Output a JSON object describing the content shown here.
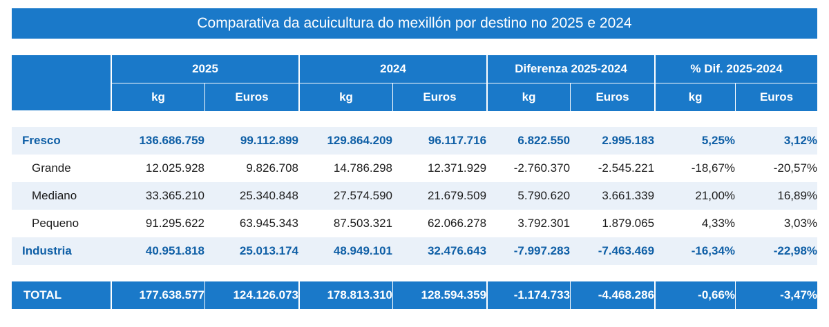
{
  "title": "Comparativa da acuicultura do mexillón por destino no 2025 e 2024",
  "header": {
    "groups": [
      "2025",
      "2024",
      "Diferenza 2025-2024",
      "% Dif. 2025-2024"
    ],
    "subcols": [
      "kg",
      "Euros",
      "kg",
      "Euros",
      "kg",
      "Euros",
      "kg",
      "Euros"
    ]
  },
  "rows": [
    {
      "label": "Fresco",
      "values": [
        "136.686.759",
        "99.112.899",
        "129.864.209",
        "96.117.716",
        "6.822.550",
        "2.995.183",
        "5,25%",
        "3,12%"
      ]
    },
    {
      "label": "Grande",
      "values": [
        "12.025.928",
        "9.826.708",
        "14.786.298",
        "12.371.929",
        "-2.760.370",
        "-2.545.221",
        "-18,67%",
        "-20,57%"
      ]
    },
    {
      "label": "Mediano",
      "values": [
        "33.365.210",
        "25.340.848",
        "27.574.590",
        "21.679.509",
        "5.790.620",
        "3.661.339",
        "21,00%",
        "16,89%"
      ]
    },
    {
      "label": "Pequeno",
      "values": [
        "91.295.622",
        "63.945.343",
        "87.503.321",
        "62.066.278",
        "3.792.301",
        "1.879.065",
        "4,33%",
        "3,03%"
      ]
    },
    {
      "label": "Industria",
      "values": [
        "40.951.818",
        "25.013.174",
        "48.949.101",
        "32.476.643",
        "-7.997.283",
        "-7.463.469",
        "-16,34%",
        "-22,98%"
      ]
    }
  ],
  "total": {
    "label": "TOTAL",
    "values": [
      "177.638.577",
      "124.126.073",
      "178.813.310",
      "128.594.359",
      "-1.174.733",
      "-4.468.286",
      "-0,66%",
      "-3,47%"
    ]
  }
}
